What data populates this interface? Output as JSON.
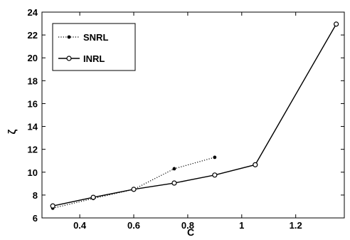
{
  "chart_data": {
    "type": "line",
    "xlabel": "C",
    "ylabel": "ζ",
    "xlim": [
      0.26,
      1.38
    ],
    "ylim": [
      6,
      24
    ],
    "x_ticks": [
      0.4,
      0.6,
      0.8,
      1,
      1.2
    ],
    "x_tick_labels": [
      "0.4",
      "0.6",
      "0.8",
      "1",
      "1.2"
    ],
    "y_ticks": [
      6,
      8,
      10,
      12,
      14,
      16,
      18,
      20,
      22,
      24
    ],
    "y_tick_labels": [
      "6",
      "8",
      "10",
      "12",
      "14",
      "16",
      "18",
      "20",
      "22",
      "24"
    ],
    "grid": false,
    "legend_position": "top-left",
    "series": [
      {
        "name": "SNRL",
        "style": "dotted",
        "marker": "filled-dot",
        "color": "#000000",
        "x": [
          0.3,
          0.45,
          0.6,
          0.75,
          0.9
        ],
        "y": [
          6.85,
          7.7,
          8.5,
          10.3,
          11.3
        ]
      },
      {
        "name": "INRL",
        "style": "solid",
        "marker": "open-circle",
        "color": "#000000",
        "x": [
          0.3,
          0.45,
          0.6,
          0.75,
          0.9,
          1.05,
          1.35
        ],
        "y": [
          7.05,
          7.8,
          8.5,
          9.05,
          9.75,
          10.65,
          22.95
        ]
      }
    ]
  }
}
